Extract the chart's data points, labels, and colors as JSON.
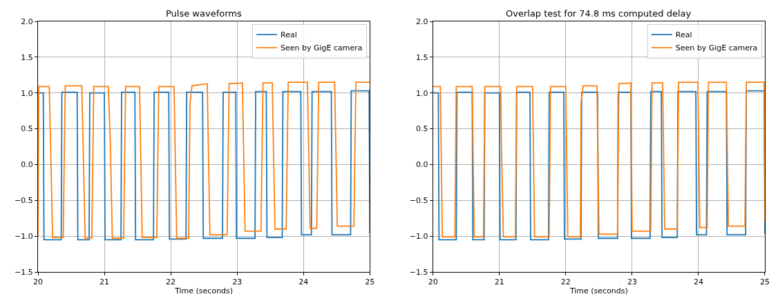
{
  "chart_data": [
    {
      "type": "line",
      "title": "Pulse waveforms",
      "xlabel": "Time (seconds)",
      "xlim": [
        20,
        25
      ],
      "ylim": [
        -1.5,
        2.0
      ],
      "xticks": [
        20,
        21,
        22,
        23,
        24,
        25
      ],
      "yticks": [
        {
          "value": -1.5,
          "label": "−1.5"
        },
        {
          "value": -1.0,
          "label": "−1.0"
        },
        {
          "value": -0.5,
          "label": "−0.5"
        },
        {
          "value": 0,
          "label": "0.0"
        },
        {
          "value": 0.5,
          "label": "0.5"
        },
        {
          "value": 1.0,
          "label": "1.0"
        },
        {
          "value": 1.5,
          "label": "1.5"
        },
        {
          "value": 2.0,
          "label": "2.0"
        }
      ],
      "grid": true,
      "legend": "top right",
      "marker": "none",
      "line_style": "solid",
      "series": [
        {
          "name": "Real",
          "color": "#1f77b4",
          "x": [
            20,
            20.08,
            20.09,
            20.35,
            20.36,
            20.59,
            20.6,
            20.77,
            20.78,
            21.0,
            21.01,
            21.25,
            21.26,
            21.46,
            21.47,
            21.74,
            21.75,
            21.97,
            21.98,
            22.23,
            22.24,
            22.48,
            22.49,
            22.78,
            22.79,
            22.98,
            22.99,
            23.27,
            23.28,
            23.44,
            23.45,
            23.68,
            23.69,
            23.96,
            23.97,
            24.12,
            24.13,
            24.42,
            24.43,
            24.71,
            24.72,
            24.99,
            25.0
          ],
          "values": [
            1.0,
            1.0,
            -1.05,
            -1.05,
            1.01,
            1.01,
            -1.05,
            -1.05,
            1.0,
            1.0,
            -1.05,
            -1.05,
            1.01,
            1.01,
            -1.05,
            -1.05,
            1.01,
            1.01,
            -1.04,
            -1.04,
            1.01,
            1.01,
            -1.03,
            -1.03,
            1.01,
            1.01,
            -1.03,
            -1.03,
            1.02,
            1.02,
            -1.02,
            -1.02,
            1.02,
            1.02,
            -0.98,
            -0.98,
            1.02,
            1.02,
            -0.98,
            -0.98,
            1.03,
            1.03,
            -0.97
          ]
        },
        {
          "name": "Seen by GigE camera",
          "color": "#ff7f0e",
          "x": [
            20.0,
            20.01,
            20.17,
            20.22,
            20.38,
            20.41,
            20.66,
            20.71,
            20.81,
            20.84,
            21.06,
            21.09,
            21.12,
            21.29,
            21.32,
            21.53,
            21.57,
            21.79,
            21.82,
            22.05,
            22.09,
            22.27,
            22.29,
            22.32,
            22.55,
            22.59,
            22.85,
            22.88,
            23.08,
            23.12,
            23.36,
            23.39,
            23.53,
            23.57,
            23.74,
            23.77,
            24.06,
            24.1,
            24.2,
            24.23,
            24.47,
            24.51,
            24.76,
            24.79,
            25.0
          ],
          "values": [
            -1.0,
            1.09,
            1.09,
            -1.02,
            -1.02,
            1.1,
            1.1,
            -1.03,
            -1.03,
            1.09,
            1.09,
            0.3,
            -1.03,
            -1.03,
            1.09,
            1.09,
            -1.02,
            -1.02,
            1.09,
            1.09,
            -1.03,
            -1.03,
            0.85,
            1.1,
            1.13,
            -0.98,
            -0.98,
            1.13,
            1.14,
            -0.93,
            -0.93,
            1.14,
            1.14,
            -0.9,
            -0.9,
            1.15,
            1.15,
            -0.89,
            -0.89,
            1.15,
            1.15,
            -0.86,
            -0.86,
            1.15,
            1.15
          ]
        }
      ]
    },
    {
      "type": "line",
      "title": "Overlap test for 74.8 ms computed delay",
      "xlabel": "Time (seconds)",
      "xlim": [
        20,
        25
      ],
      "ylim": [
        -1.5,
        2.0
      ],
      "xticks": [
        20,
        21,
        22,
        23,
        24,
        25
      ],
      "yticks": [
        {
          "value": -1.5,
          "label": "−1.5"
        },
        {
          "value": -1.0,
          "label": "−1.0"
        },
        {
          "value": -0.5,
          "label": "−0.5"
        },
        {
          "value": 0,
          "label": "0.0"
        },
        {
          "value": 0.5,
          "label": "0.5"
        },
        {
          "value": 1.0,
          "label": "1.0"
        },
        {
          "value": 1.5,
          "label": "1.5"
        },
        {
          "value": 2.0,
          "label": "2.0"
        }
      ],
      "grid": true,
      "legend": "top right",
      "marker": "none",
      "line_style": "solid",
      "series": [
        {
          "name": "Real",
          "color": "#1f77b4",
          "x": [
            20,
            20.08,
            20.09,
            20.35,
            20.36,
            20.59,
            20.6,
            20.77,
            20.78,
            21.0,
            21.01,
            21.25,
            21.26,
            21.46,
            21.47,
            21.74,
            21.75,
            21.97,
            21.98,
            22.23,
            22.24,
            22.48,
            22.49,
            22.78,
            22.79,
            22.98,
            22.99,
            23.27,
            23.28,
            23.44,
            23.45,
            23.68,
            23.69,
            23.96,
            23.97,
            24.12,
            24.13,
            24.42,
            24.43,
            24.71,
            24.72,
            24.99,
            25.0
          ],
          "values": [
            1.0,
            1.0,
            -1.05,
            -1.05,
            1.01,
            1.01,
            -1.05,
            -1.05,
            1.0,
            1.0,
            -1.05,
            -1.05,
            1.01,
            1.01,
            -1.05,
            -1.05,
            1.01,
            1.01,
            -1.04,
            -1.04,
            1.01,
            1.01,
            -1.03,
            -1.03,
            1.01,
            1.01,
            -1.03,
            -1.03,
            1.02,
            1.02,
            -1.02,
            -1.02,
            1.02,
            1.02,
            -0.98,
            -0.98,
            1.02,
            1.02,
            -0.98,
            -0.98,
            1.03,
            1.03,
            -0.97
          ]
        },
        {
          "name": "Seen by GigE camera",
          "color": "#ff7f0e",
          "x": [
            20.0,
            20.11,
            20.14,
            20.33,
            20.35,
            20.59,
            20.62,
            20.76,
            20.78,
            21.02,
            21.03,
            21.06,
            21.24,
            21.26,
            21.5,
            21.53,
            21.75,
            21.77,
            22.0,
            22.03,
            22.22,
            22.23,
            22.26,
            22.47,
            22.5,
            22.78,
            22.8,
            22.98,
            23.0,
            23.28,
            23.3,
            23.46,
            23.49,
            23.68,
            23.7,
            23.99,
            24.02,
            24.13,
            24.15,
            24.42,
            24.45,
            24.7,
            24.72,
            24.99,
            25.0
          ],
          "values": [
            1.09,
            1.09,
            -1.01,
            -1.01,
            1.09,
            1.09,
            -1.01,
            -1.01,
            1.09,
            1.09,
            0.3,
            -1.01,
            -1.01,
            1.09,
            1.09,
            -1.01,
            -1.01,
            1.09,
            1.09,
            -1.01,
            -1.01,
            0.85,
            1.1,
            1.1,
            -0.97,
            -0.97,
            1.13,
            1.14,
            -0.93,
            -0.93,
            1.14,
            1.14,
            -0.9,
            -0.9,
            1.15,
            1.15,
            -0.88,
            -0.88,
            1.15,
            1.15,
            -0.86,
            -0.86,
            1.15,
            1.15,
            -0.8
          ]
        }
      ]
    }
  ]
}
